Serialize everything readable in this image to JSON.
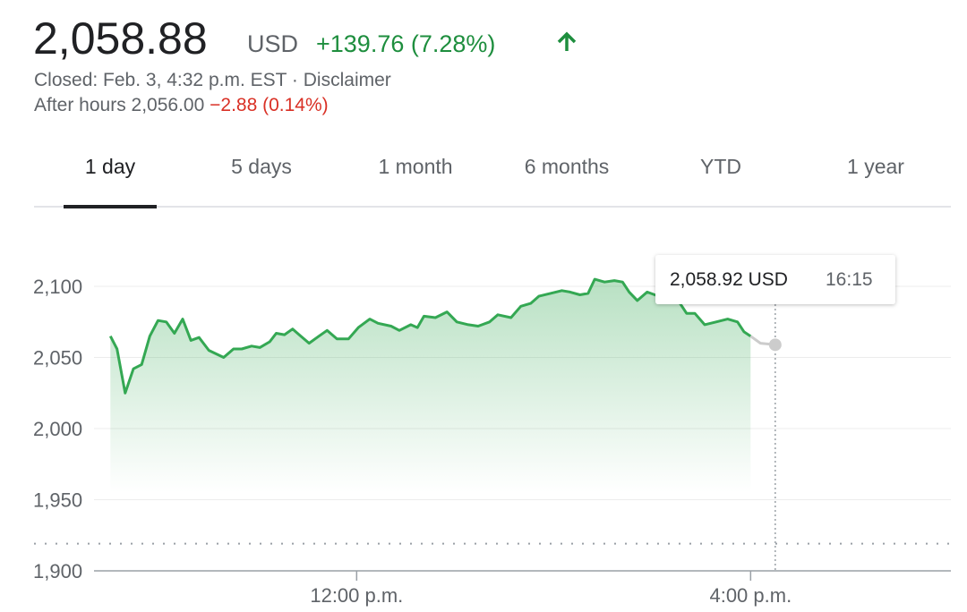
{
  "quote": {
    "price": "2,058.88",
    "currency": "USD",
    "change": "+139.76 (7.28%)",
    "closed": "Closed: Feb. 3, 4:32 p.m. EST ·",
    "disclaimer": "Disclaimer",
    "after_hours": "After hours 2,056.00",
    "after_hours_change": "−2.88 (0.14%)"
  },
  "tabs": {
    "items": [
      "1 day",
      "5 days",
      "1 month",
      "6 months",
      "YTD",
      "1 year"
    ],
    "active": 0
  },
  "chart_data": {
    "type": "line",
    "series": [
      {
        "color": "#34a853",
        "x": [
          570,
          574,
          579,
          584,
          589,
          594,
          599,
          604,
          609,
          614,
          619,
          624,
          630,
          639,
          645,
          650,
          656,
          661,
          667,
          671,
          676,
          681,
          686,
          691,
          697,
          702,
          708,
          715,
          721,
          728,
          733,
          741,
          746,
          753,
          757,
          761,
          768,
          775,
          781,
          788,
          794,
          801,
          806,
          814,
          820,
          826,
          831,
          838,
          845,
          850,
          856,
          861,
          865,
          871,
          877,
          882,
          886,
          891,
          897,
          904,
          911,
          917,
          921,
          926,
          932,
          939,
          946,
          952,
          956,
          960
        ],
        "values": [
          2065,
          2056,
          2025,
          2042,
          2045,
          2065,
          2076,
          2075,
          2067,
          2077,
          2062,
          2064,
          2055,
          2050,
          2056,
          2056,
          2058,
          2057,
          2061,
          2067,
          2066,
          2070,
          2065,
          2060,
          2065,
          2069,
          2063,
          2063,
          2071,
          2077,
          2074,
          2072,
          2069,
          2073,
          2071,
          2079,
          2078,
          2082,
          2075,
          2073,
          2072,
          2075,
          2080,
          2078,
          2086,
          2088,
          2093,
          2095,
          2097,
          2096,
          2094,
          2095,
          2105,
          2103,
          2104,
          2103,
          2096,
          2090,
          2096,
          2093,
          2091,
          2088,
          2081,
          2081,
          2073,
          2075,
          2077,
          2075,
          2068,
          2065
        ]
      },
      {
        "color": "#cccccc",
        "x": [
          960,
          966,
          975
        ],
        "values": [
          2065,
          2060,
          2058.92
        ]
      }
    ],
    "xlim": [
      560,
      1082
    ],
    "xticks": [
      {
        "value": 720,
        "label": "12:00 p.m."
      },
      {
        "value": 960,
        "label": "4:00 p.m."
      }
    ],
    "ylim": [
      1900,
      2130
    ],
    "yticks": [
      {
        "value": 1900,
        "label": "1,900"
      },
      {
        "value": 1950,
        "label": "1,950"
      },
      {
        "value": 2000,
        "label": "2,000"
      },
      {
        "value": 2050,
        "label": "2,050"
      },
      {
        "value": 2100,
        "label": "2,100"
      }
    ],
    "reference_line": 1919.12,
    "grid": true,
    "tooltip": {
      "x": 975,
      "value": 2058.92,
      "value_text": "2,058.92 USD",
      "time": "16:15"
    }
  }
}
